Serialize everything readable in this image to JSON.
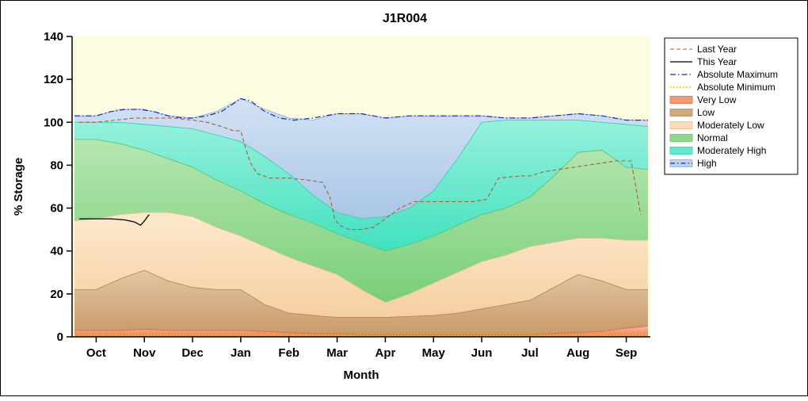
{
  "window": {
    "bg": "#ffffff",
    "border": "#000000"
  },
  "chart_data": {
    "type": "area",
    "title": "J1R004",
    "xlabel": "Month",
    "ylabel": "% Storage",
    "ylim": [
      0,
      140
    ],
    "yticks": [
      0,
      20,
      40,
      60,
      80,
      100,
      120,
      140
    ],
    "x_categories": [
      "Oct",
      "Nov",
      "Dec",
      "Jan",
      "Feb",
      "Mar",
      "Apr",
      "May",
      "Jun",
      "Jul",
      "Aug",
      "Sep"
    ],
    "plot_bg": "#fcfce1",
    "band_x": [
      -0.45,
      0,
      0.5,
      1,
      1.5,
      2,
      2.5,
      3,
      3.5,
      4,
      4.5,
      5,
      5.5,
      6,
      6.5,
      7,
      7.5,
      8,
      8.5,
      9,
      9.5,
      10,
      10.5,
      11,
      11.45
    ],
    "bands": [
      {
        "name": "Very Low",
        "color_bottom": "#f08055",
        "color_top": "#fbb79a",
        "edge": "#e26a41",
        "top": [
          3,
          3,
          3,
          3.5,
          3,
          3,
          3,
          3,
          2.5,
          2,
          1.5,
          1.5,
          1,
          1,
          1,
          1,
          1,
          1,
          1,
          1,
          1.5,
          2,
          2.5,
          4,
          5
        ]
      },
      {
        "name": "Low",
        "color_bottom": "#c99a6b",
        "color_top": "#e2c6a2",
        "edge": "#b3885b",
        "top": [
          22,
          22,
          27,
          31,
          26,
          23,
          22,
          22,
          15,
          11,
          10,
          9,
          9,
          9,
          9.5,
          10,
          11,
          13,
          15,
          17,
          23,
          29,
          26,
          22,
          22
        ]
      },
      {
        "name": "Moderately Low",
        "color_bottom": "#f6cfa0",
        "color_top": "#fde9cf",
        "edge": "#ecbf8c",
        "top": [
          54,
          55,
          57,
          58,
          58,
          56,
          51,
          47,
          42,
          37,
          33,
          29,
          22,
          16,
          20,
          25,
          30,
          35,
          38,
          42,
          44,
          46,
          46,
          45,
          45
        ]
      },
      {
        "name": "Normal",
        "color_bottom": "#79cf79",
        "color_top": "#b5e6b0",
        "edge": "#66c166",
        "top": [
          92,
          92,
          90,
          87,
          83,
          79,
          73,
          68,
          62,
          57,
          53,
          48,
          44,
          40,
          43,
          47,
          52,
          57,
          60,
          65,
          75,
          86,
          87,
          79,
          78
        ]
      },
      {
        "name": "Moderately High",
        "color_bottom": "#41e1bf",
        "color_top": "#96f1dc",
        "edge": "#2fd2b2",
        "top": [
          100,
          100,
          100,
          99,
          98,
          97,
          94,
          91,
          84,
          76,
          66,
          58,
          55,
          56,
          60,
          68,
          83,
          100,
          101,
          101,
          101,
          101,
          100,
          99,
          98
        ]
      },
      {
        "name": "High",
        "color_bottom": "#a9c6e6",
        "color_top": "#d3e2f4",
        "edge": "#8fb2da",
        "top": [
          103,
          103,
          106,
          106,
          103,
          102,
          105,
          111,
          106,
          102,
          101,
          104,
          104,
          102,
          103,
          103,
          103,
          103,
          102,
          102,
          103,
          104,
          103,
          101,
          101
        ]
      }
    ],
    "lines": [
      {
        "name": "Last Year",
        "color": "#a5613a",
        "dash": "5,3",
        "width": 1.1,
        "x": [
          -0.35,
          0,
          0.4,
          0.8,
          1.2,
          1.6,
          2.0,
          2.3,
          2.6,
          2.85,
          3.0,
          3.1,
          3.2,
          3.35,
          3.6,
          4.0,
          4.4,
          4.7,
          4.85,
          4.95,
          5.05,
          5.25,
          5.5,
          5.75,
          6.0,
          6.3,
          6.6,
          6.85,
          7.3,
          7.8,
          8.1,
          8.25,
          8.35,
          8.8,
          9.0,
          9.3,
          9.6,
          9.9,
          10.2,
          10.5,
          10.8,
          11.0,
          11.1,
          11.3
        ],
        "y": [
          100,
          100,
          101,
          102,
          102,
          102,
          101,
          100,
          98,
          96,
          96,
          88,
          81,
          76,
          74,
          74,
          73,
          72,
          65,
          55,
          52,
          50,
          50,
          51,
          55,
          60,
          63,
          63,
          63,
          63,
          64,
          70,
          74,
          75,
          75,
          77,
          78,
          79,
          80,
          81,
          82,
          82,
          82,
          57
        ]
      },
      {
        "name": "This Year",
        "color": "#000000",
        "dash": "",
        "width": 1.3,
        "x": [
          -0.35,
          0,
          0.3,
          0.6,
          0.8,
          0.92,
          1.0,
          1.1
        ],
        "y": [
          55,
          55,
          55,
          54.5,
          53.5,
          52,
          54,
          57
        ]
      },
      {
        "name": "Absolute Maximum",
        "color": "#2121cb",
        "dash": "7,3,1.5,3",
        "width": 1.2,
        "x": [
          -0.45,
          0,
          0.3,
          0.6,
          0.9,
          1.2,
          1.5,
          1.8,
          2.0,
          2.3,
          2.6,
          2.8,
          3.0,
          3.2,
          3.5,
          3.8,
          4.1,
          4.5,
          5.0,
          5.5,
          6.0,
          6.5,
          7.0,
          7.5,
          8.0,
          8.5,
          9.0,
          9.5,
          10.0,
          10.5,
          11.0,
          11.45
        ],
        "y": [
          103,
          103,
          105,
          106,
          106,
          105,
          103,
          102,
          102,
          103,
          105,
          108,
          111,
          110,
          105,
          102,
          101,
          102,
          104,
          104,
          102,
          103,
          103,
          103,
          103,
          102,
          102,
          103,
          104,
          103,
          101,
          101
        ]
      },
      {
        "name": "Absolute Minimum",
        "color": "#e0d400",
        "dash": "1.5,2.5",
        "width": 2,
        "x": [
          -0.45,
          11.45
        ],
        "y": [
          0.6,
          0.6
        ]
      }
    ],
    "legend": {
      "entries": [
        {
          "label": "Last Year",
          "swatch": "line",
          "color": "#a5613a",
          "dash": "5,3",
          "width": 1.1
        },
        {
          "label": "This Year",
          "swatch": "line",
          "color": "#000000",
          "dash": "",
          "width": 1.3
        },
        {
          "label": "Absolute Maximum",
          "swatch": "line",
          "color": "#2121cb",
          "dash": "7,3,1.5,3",
          "width": 1.2
        },
        {
          "label": "Absolute Minimum",
          "swatch": "line",
          "color": "#e0d400",
          "dash": "1.5,2.5",
          "width": 2
        },
        {
          "label": "Very Low",
          "swatch": "box",
          "fill": "#f49a76",
          "edge": "#e26a41"
        },
        {
          "label": "Low",
          "swatch": "box",
          "fill": "#d2a97e",
          "edge": "#b3885b"
        },
        {
          "label": "Moderately Low",
          "swatch": "box",
          "fill": "#fadcb8",
          "edge": "#ecbf8c"
        },
        {
          "label": "Normal",
          "swatch": "box",
          "fill": "#8ed88e",
          "edge": "#66c166"
        },
        {
          "label": "Moderately High",
          "swatch": "box",
          "fill": "#64e8cc",
          "edge": "#2fd2b2"
        },
        {
          "label": "High",
          "swatch": "box",
          "fill": "#bed3ec",
          "edge": "#8fb2da",
          "overlay_color": "#2121cb",
          "overlay_dash": "6,3,1.5,3"
        }
      ]
    }
  }
}
